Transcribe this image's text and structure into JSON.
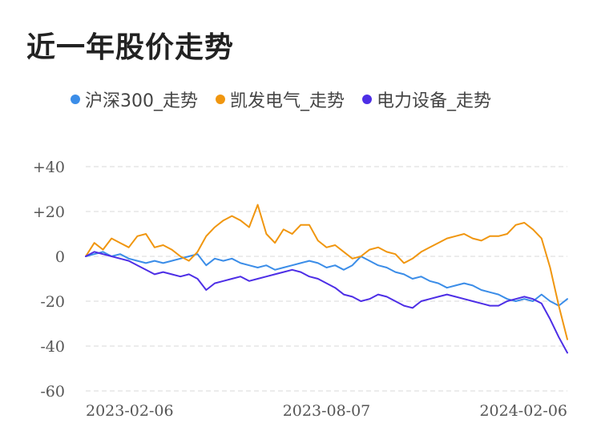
{
  "title": "近一年股价走势",
  "chart_data": {
    "type": "line",
    "ylim": [
      -60,
      40
    ],
    "yticks": [
      "+40",
      "+20",
      "0",
      "-20",
      "-40",
      "-60"
    ],
    "ytick_values": [
      40,
      20,
      0,
      -20,
      -40,
      -60
    ],
    "xticks": [
      "2023-02-06",
      "2023-08-07",
      "2024-02-06"
    ],
    "grid": true,
    "legend_position": "top",
    "series": [
      {
        "name": "沪深300_走势",
        "color": "#3b8de8",
        "values": [
          0,
          1,
          2,
          0,
          1,
          -1,
          -2,
          -3,
          -2,
          -3,
          -2,
          -1,
          0,
          1,
          -4,
          -1,
          -2,
          -1,
          -3,
          -4,
          -5,
          -4,
          -6,
          -5,
          -4,
          -3,
          -2,
          -3,
          -5,
          -4,
          -6,
          -4,
          0,
          -2,
          -4,
          -5,
          -7,
          -8,
          -10,
          -9,
          -11,
          -12,
          -14,
          -13,
          -12,
          -13,
          -15,
          -16,
          -17,
          -19,
          -20,
          -19,
          -20,
          -17,
          -20,
          -22,
          -19
        ]
      },
      {
        "name": "凯发电气_走势",
        "color": "#f0960f",
        "values": [
          0,
          6,
          3,
          8,
          6,
          4,
          9,
          10,
          4,
          5,
          3,
          0,
          -2,
          2,
          9,
          13,
          16,
          18,
          16,
          13,
          23,
          10,
          6,
          12,
          10,
          14,
          14,
          7,
          4,
          5,
          2,
          -1,
          0,
          3,
          4,
          2,
          1,
          -3,
          -1,
          2,
          4,
          6,
          8,
          9,
          10,
          8,
          7,
          9,
          9,
          10,
          14,
          15,
          12,
          8,
          -5,
          -22,
          -37
        ]
      },
      {
        "name": "电力设备_走势",
        "color": "#4d2ee6",
        "values": [
          0,
          2,
          1,
          0,
          -1,
          -2,
          -4,
          -6,
          -8,
          -7,
          -8,
          -9,
          -8,
          -10,
          -15,
          -12,
          -11,
          -10,
          -9,
          -11,
          -10,
          -9,
          -8,
          -7,
          -6,
          -7,
          -9,
          -10,
          -12,
          -14,
          -17,
          -18,
          -20,
          -19,
          -17,
          -18,
          -20,
          -22,
          -23,
          -20,
          -19,
          -18,
          -17,
          -18,
          -19,
          -20,
          -21,
          -22,
          -22,
          -20,
          -19,
          -18,
          -19,
          -21,
          -28,
          -36,
          -43
        ]
      }
    ]
  }
}
